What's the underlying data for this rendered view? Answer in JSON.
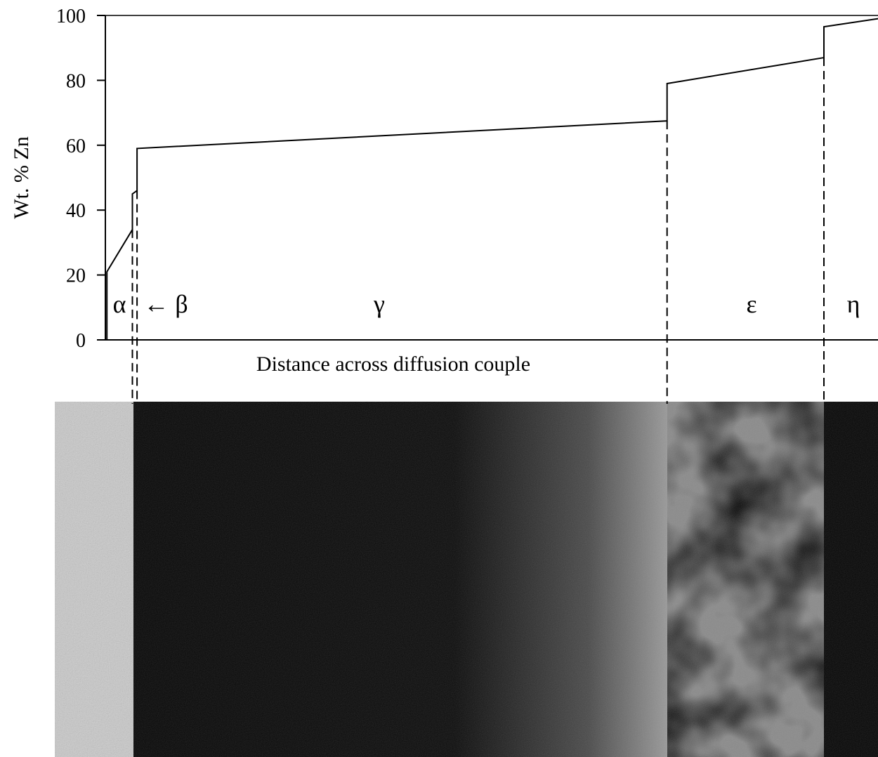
{
  "chart_data": {
    "type": "line",
    "y_label": "Wt. % Zn",
    "x_label": "Distance across diffusion couple",
    "x": [
      0.2,
      0.2,
      3.5,
      3.5,
      4.1,
      4.1,
      72.7,
      72.7,
      93,
      93,
      100
    ],
    "series": [
      {
        "color": "#000000",
        "values": [
          0,
          21,
          34,
          45,
          46,
          59,
          67.5,
          79,
          87,
          96.5,
          99
        ]
      }
    ],
    "xlim": [
      0,
      100
    ],
    "ylim": [
      0,
      100
    ],
    "yticks": [
      0,
      20,
      40,
      60,
      80,
      100
    ],
    "phase_boundaries": [
      3.5,
      4.1,
      72.7,
      93
    ],
    "phase_labels": [
      "α",
      "← β",
      "γ",
      "ε",
      "η"
    ]
  }
}
